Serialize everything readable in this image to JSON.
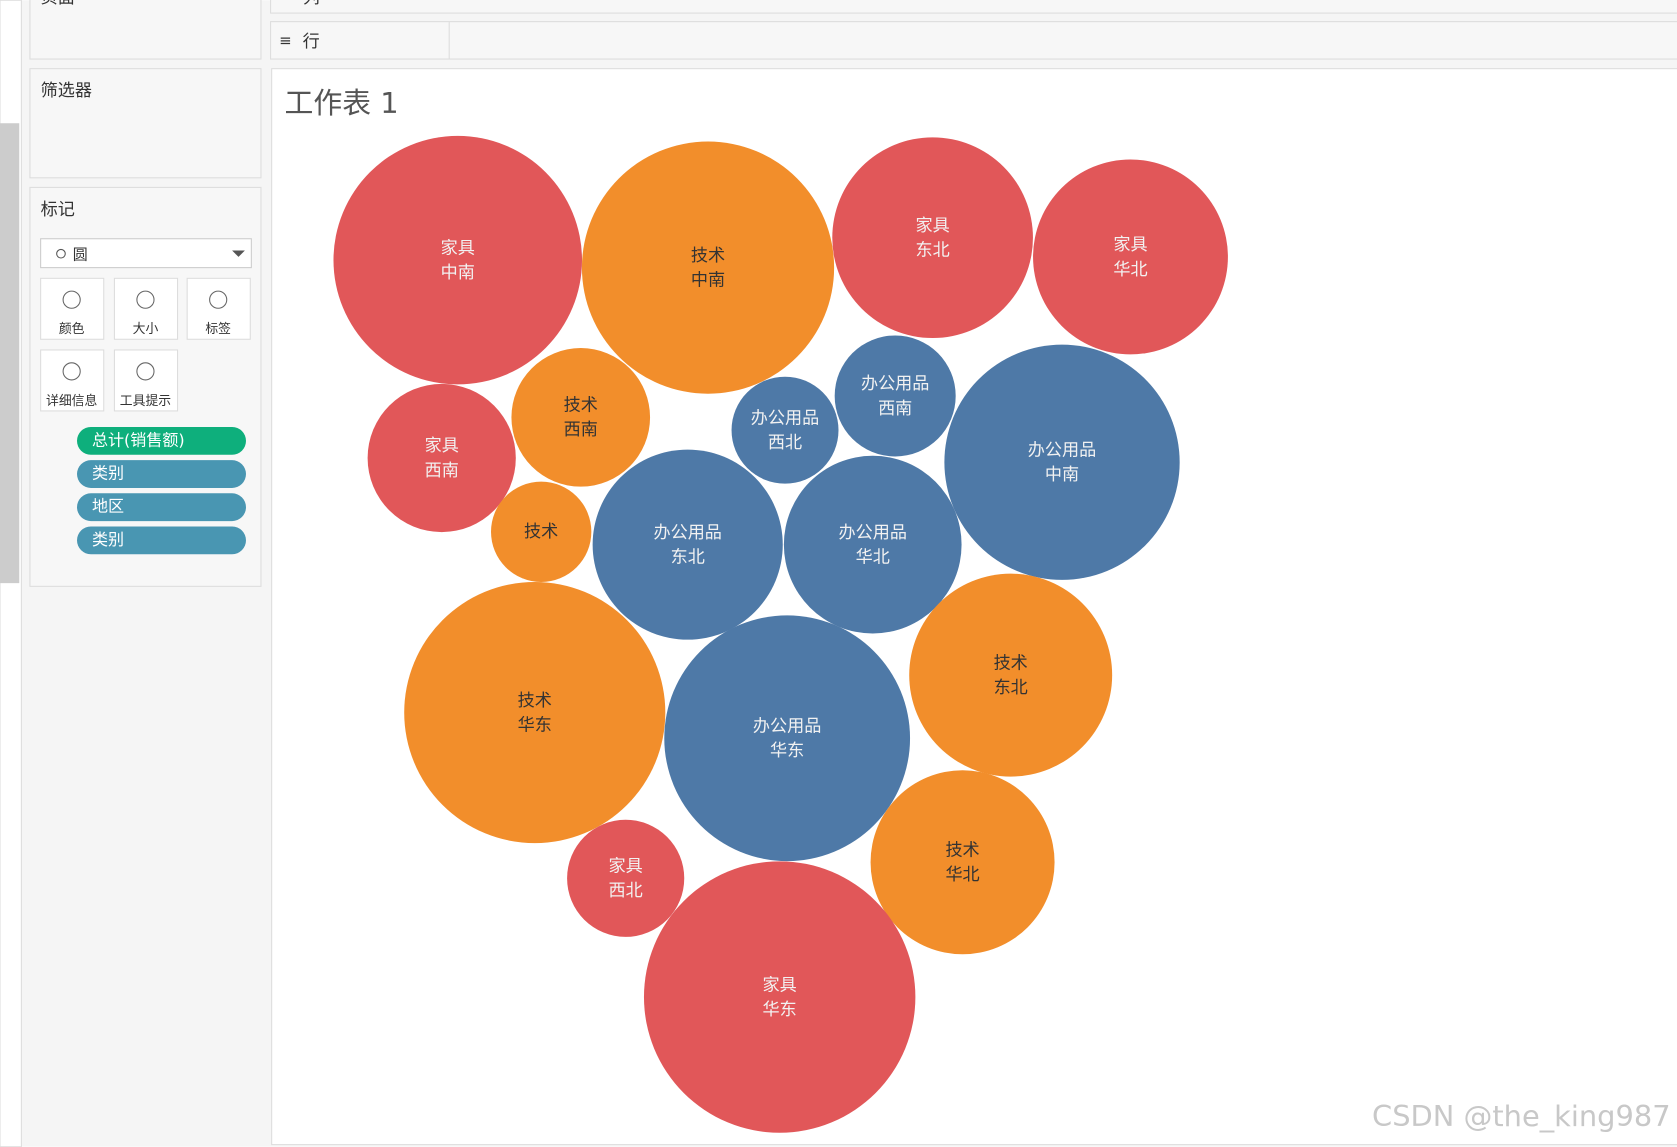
{
  "panel": {
    "pages": "页面",
    "filters": "筛选器",
    "marks": "标记",
    "mark_type": "圆",
    "buttons": [
      "颜色",
      "大小",
      "标签",
      "详细信息",
      "工具提示"
    ],
    "pills": [
      "总计(销售额)",
      "类别",
      "地区",
      "类别"
    ]
  },
  "shelves": {
    "columns": "列",
    "rows": "行"
  },
  "worksheet": {
    "title": "工作表 1",
    "bubbles": [
      {
        "category": "家具",
        "region": "中南",
        "sales": 135,
        "color": "#e15759"
      },
      {
        "category": "技术",
        "region": "中南",
        "sales": 139,
        "color": "#f28e2b"
      },
      {
        "category": "家具",
        "region": "东北",
        "sales": 88,
        "color": "#e15759"
      },
      {
        "category": "家具",
        "region": "华北",
        "sales": 83,
        "color": "#e15759"
      },
      {
        "category": "家具",
        "region": "西南",
        "sales": 48,
        "color": "#e15759"
      },
      {
        "category": "技术",
        "region": "西南",
        "sales": 42,
        "color": "#f28e2b"
      },
      {
        "category": "办公用品",
        "region": "西北",
        "sales": 25,
        "color": "#4e79a7"
      },
      {
        "category": "办公用品",
        "region": "西南",
        "sales": 32,
        "color": "#4e79a7"
      },
      {
        "category": "办公用品",
        "region": "中南",
        "sales": 121,
        "color": "#4e79a7"
      },
      {
        "category": "技术",
        "sales": 22,
        "color": "#f28e2b"
      },
      {
        "category": "办公用品",
        "region": "东北",
        "sales": 79,
        "color": "#4e79a7"
      },
      {
        "category": "办公用品",
        "region": "华北",
        "sales": 69,
        "color": "#4e79a7"
      },
      {
        "category": "技术",
        "region": "华东",
        "sales": 149,
        "color": "#f28e2b"
      },
      {
        "category": "办公用品",
        "region": "华东",
        "sales": 132,
        "color": "#4e79a7"
      },
      {
        "category": "技术",
        "region": "东北",
        "sales": 90,
        "color": "#f28e2b"
      },
      {
        "category": "家具",
        "region": "西北",
        "sales": 30,
        "color": "#e15759"
      },
      {
        "category": "技术",
        "region": "华北",
        "sales": 74,
        "color": "#f28e2b"
      },
      {
        "category": "家具",
        "region": "华东",
        "sales": 161,
        "color": "#e15759"
      }
    ]
  },
  "watermark": "CSDN @the_king987"
}
